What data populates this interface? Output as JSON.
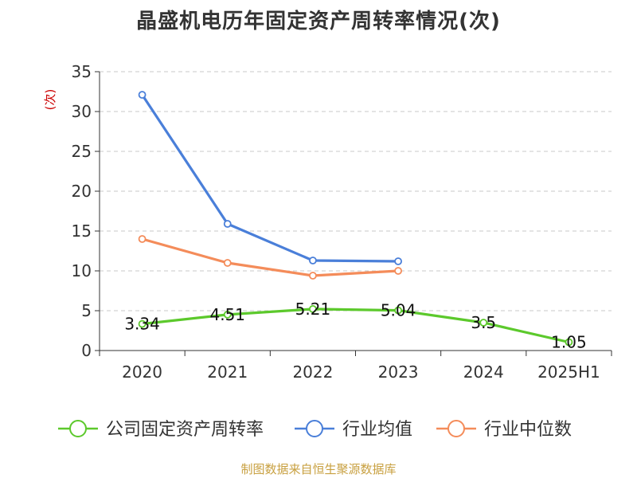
{
  "chart_data": {
    "type": "line",
    "title": "晶盛机电历年固定资产周转率情况(次)",
    "ylabel": "(次)",
    "categories": [
      "2020",
      "2021",
      "2022",
      "2023",
      "2024",
      "2025H1"
    ],
    "ylim": [
      0,
      35
    ],
    "yticks": [
      0,
      5,
      10,
      15,
      20,
      25,
      30,
      35
    ],
    "grid": true,
    "legend_position": "bottom",
    "series": [
      {
        "name": "公司固定资产周转率",
        "color": "#5cc92c",
        "values": [
          3.34,
          4.51,
          5.21,
          5.04,
          3.5,
          1.05
        ],
        "labels": [
          "3.34",
          "4.51",
          "5.21",
          "5.04",
          "3.5",
          "1.05"
        ]
      },
      {
        "name": "行业均值",
        "color": "#4a7fd9",
        "values": [
          32.1,
          15.9,
          11.3,
          11.2,
          null,
          null
        ]
      },
      {
        "name": "行业中位数",
        "color": "#f48c5a",
        "values": [
          14.0,
          11.0,
          9.4,
          10.0,
          null,
          null
        ]
      }
    ],
    "source": "制图数据来自恒生聚源数据库"
  }
}
